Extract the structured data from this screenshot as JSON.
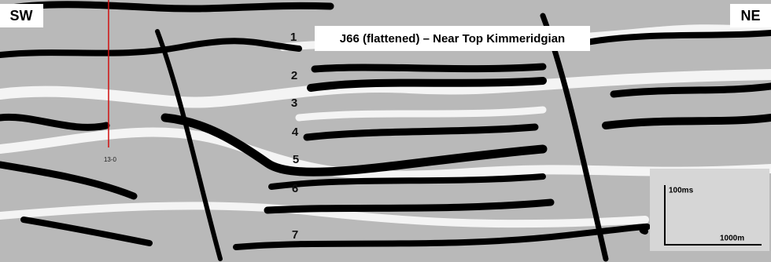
{
  "labels": {
    "sw": "SW",
    "ne": "NE",
    "title": "J66 (flattened) – Near Top Kimmeridgian",
    "horizons": [
      "1",
      "2",
      "3",
      "4",
      "5",
      "6",
      "7"
    ],
    "well": "13-0",
    "scale": {
      "time": "100ms",
      "distance": "1000m"
    }
  }
}
